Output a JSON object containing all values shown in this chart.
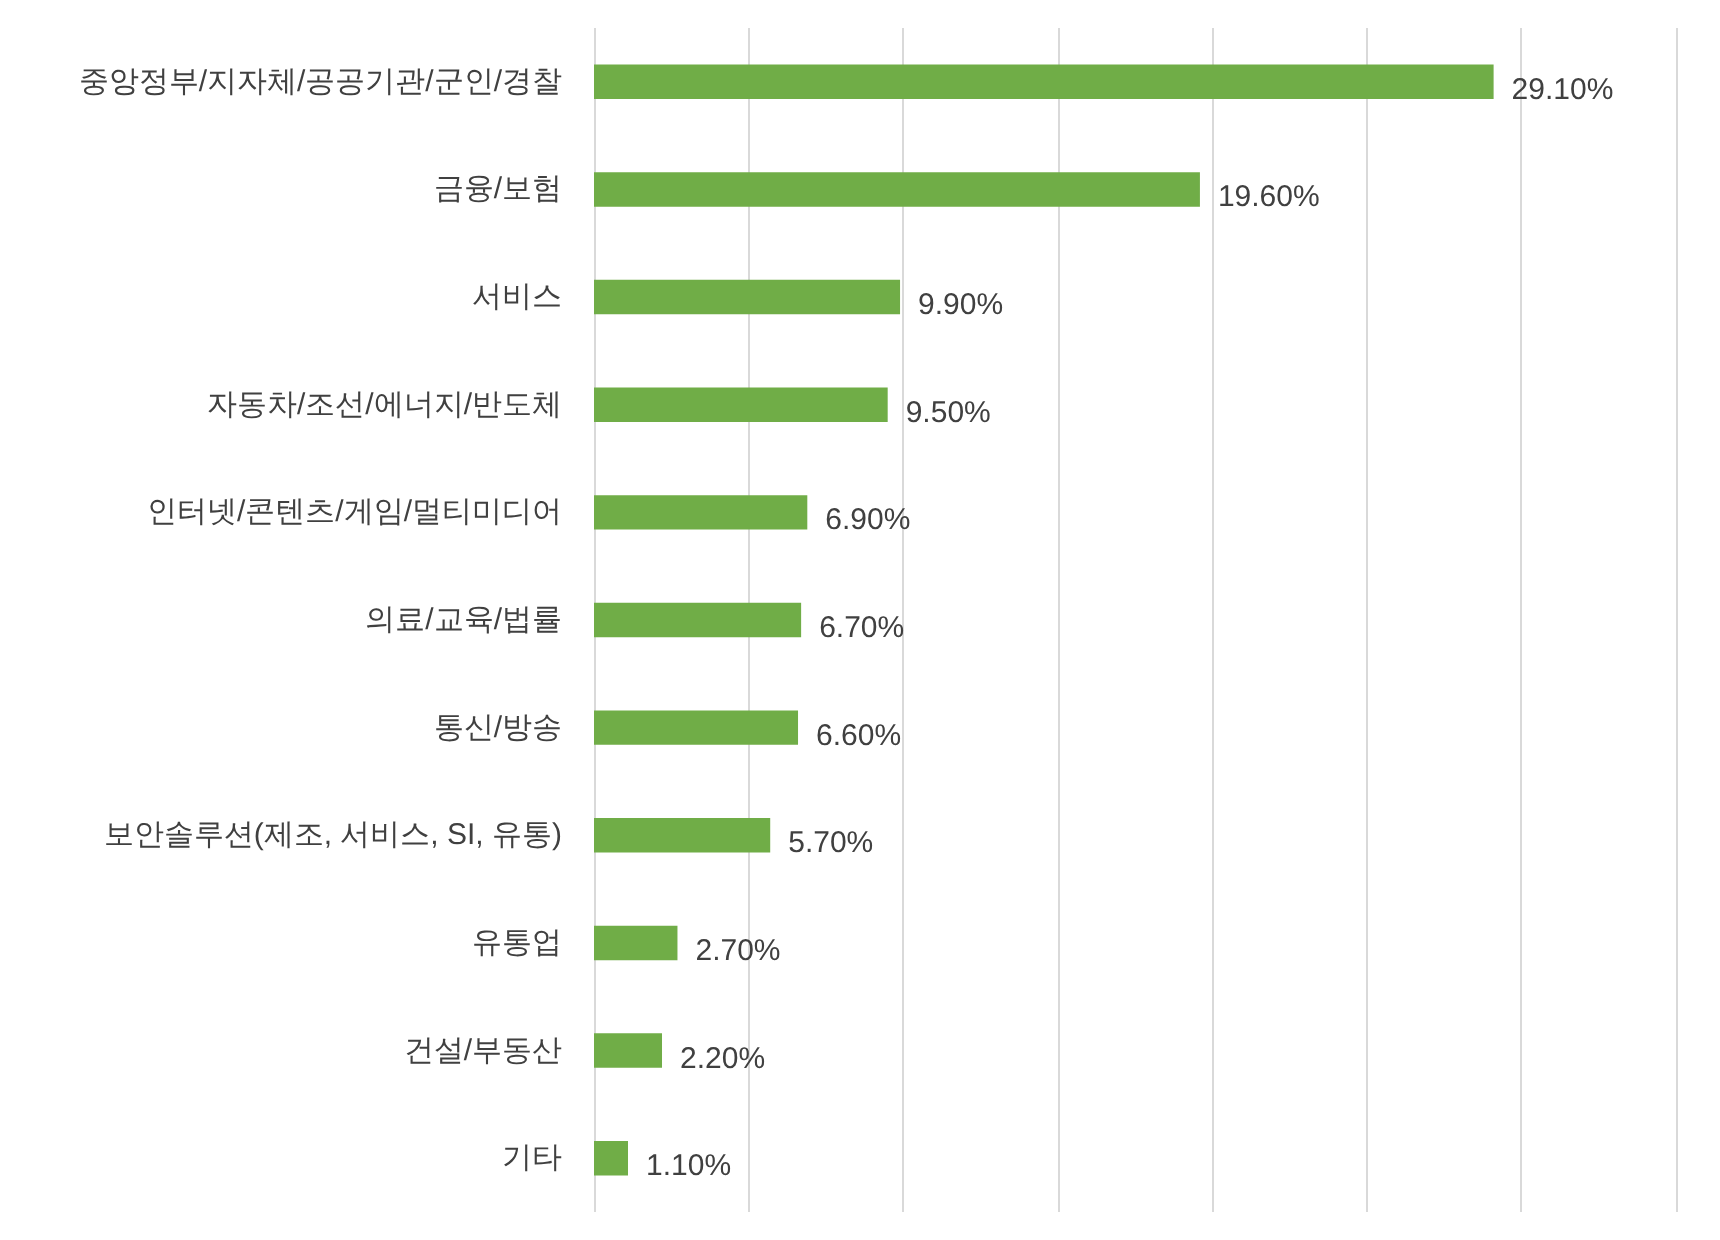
{
  "chart_data": {
    "type": "bar",
    "orientation": "horizontal",
    "categories": [
      "중앙정부/지자체/공공기관/군인/경찰",
      "금융/보험",
      "서비스",
      "자동차/조선/에너지/반도체",
      "인터넷/콘텐츠/게임/멀티미디어",
      "의료/교육/법률",
      "통신/방송",
      "보안솔루션(제조, 서비스, SI, 유통)",
      "유통업",
      "건설/부동산",
      "기타"
    ],
    "values": [
      29.1,
      19.6,
      9.9,
      9.5,
      6.9,
      6.7,
      6.6,
      5.7,
      2.7,
      2.2,
      1.1
    ],
    "value_labels": [
      "29.10%",
      "19.60%",
      "9.90%",
      "9.50%",
      "6.90%",
      "6.70%",
      "6.60%",
      "5.70%",
      "2.70%",
      "2.20%",
      "1.10%"
    ],
    "color": "#70ad47",
    "xlim": [
      0,
      35
    ],
    "xticks": [
      {
        "value": 0,
        "label": null
      },
      {
        "value": 5,
        "label": null
      },
      {
        "value": 10,
        "label": null
      },
      {
        "value": 15,
        "label": null
      },
      {
        "value": 20,
        "label": null
      },
      {
        "value": 25,
        "label": null
      },
      {
        "value": 30,
        "label": null
      },
      {
        "value": 35,
        "label": null
      }
    ],
    "grid": "x",
    "tick_labels": "y"
  }
}
